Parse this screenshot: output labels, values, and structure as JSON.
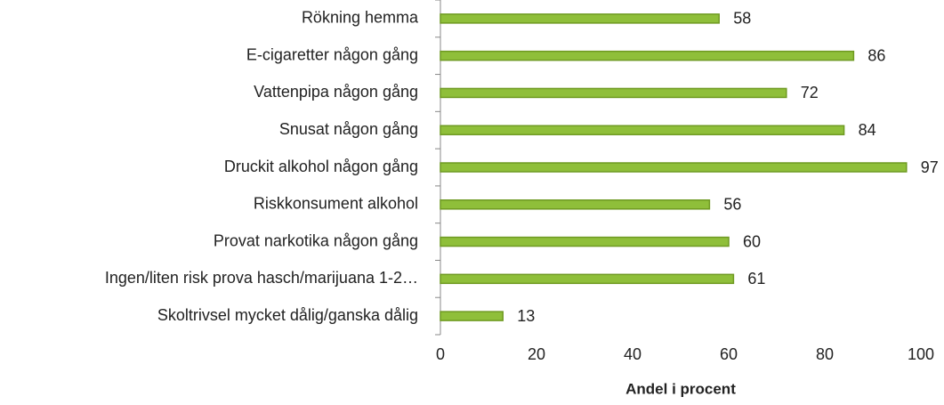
{
  "chart_data": {
    "type": "bar",
    "orientation": "horizontal",
    "categories": [
      "Rökning hemma",
      "E-cigaretter någon gång",
      "Vattenpipa någon gång",
      "Snusat någon gång",
      "Druckit alkohol någon gång",
      "Riskkonsument alkohol",
      "Provat narkotika någon gång",
      "Ingen/liten risk prova hasch/marijuana 1-2…",
      "Skoltrivsel mycket dålig/ganska dålig"
    ],
    "values": [
      58,
      86,
      72,
      84,
      97,
      56,
      60,
      61,
      13
    ],
    "color": "#8fbf3a",
    "xlabel": "Andel i procent",
    "xlim": [
      0,
      100
    ],
    "xticks": [
      0,
      20,
      40,
      60,
      80,
      100
    ],
    "grid": false
  }
}
